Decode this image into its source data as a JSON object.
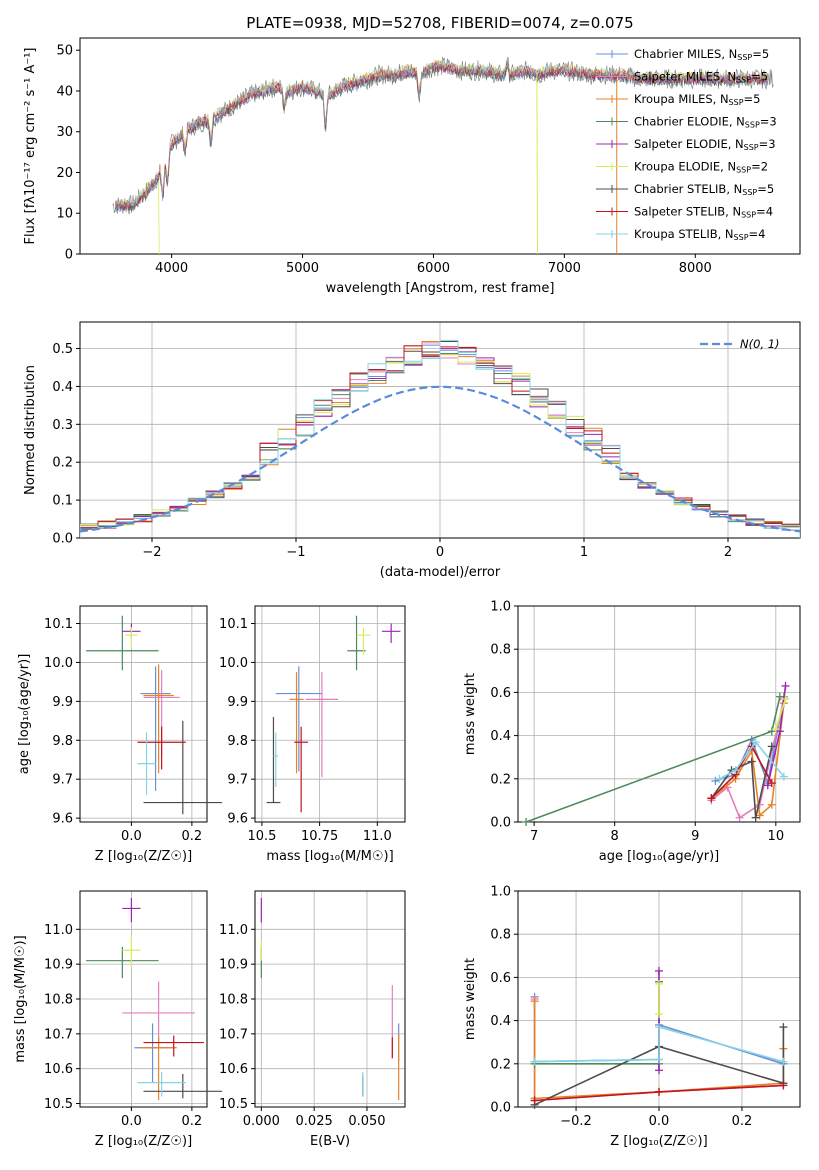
{
  "title": "PLATE=0938, MJD=52708, FIBERID=0074, z=0.075",
  "colors": {
    "Chabrier MILES": "#6a8fd8",
    "Salpeter MILES": "#e87dbd",
    "Kroupa MILES": "#e8822a",
    "Chabrier ELODIE": "#4f8a5a",
    "Salpeter ELODIE": "#9b27b0",
    "Kroupa ELODIE": "#d9ea5f",
    "Chabrier STELIB": "#4d4d4d",
    "Salpeter STELIB": "#c0161d",
    "Kroupa STELIB": "#86d3e6"
  },
  "legend": [
    {
      "name": "Chabrier MILES",
      "nssp": "5"
    },
    {
      "name": "Salpeter MILES",
      "nssp": "5"
    },
    {
      "name": "Kroupa MILES",
      "nssp": "5"
    },
    {
      "name": "Chabrier ELODIE",
      "nssp": "3"
    },
    {
      "name": "Salpeter ELODIE",
      "nssp": "3"
    },
    {
      "name": "Kroupa ELODIE",
      "nssp": "2"
    },
    {
      "name": "Chabrier STELIB",
      "nssp": "5"
    },
    {
      "name": "Salpeter STELIB",
      "nssp": "4"
    },
    {
      "name": "Kroupa STELIB",
      "nssp": "4"
    }
  ],
  "chart_data": [
    {
      "id": "spectrum",
      "type": "line",
      "xlabel": "wavelength [Angstrom, rest frame]",
      "ylabel": "Flux [fλ10⁻¹⁷ erg cm⁻² s⁻¹ A⁻¹]",
      "xlim": [
        3300,
        8800
      ],
      "ylim": [
        0,
        53
      ],
      "xticks": [
        4000,
        5000,
        6000,
        7000,
        8000
      ],
      "yticks": [
        0,
        10,
        20,
        30,
        40,
        50
      ],
      "continuum": [
        [
          3550,
          12
        ],
        [
          3700,
          12
        ],
        [
          3800,
          15
        ],
        [
          3900,
          19
        ],
        [
          4000,
          27
        ],
        [
          4100,
          30
        ],
        [
          4200,
          32
        ],
        [
          4300,
          33
        ],
        [
          4400,
          35
        ],
        [
          4500,
          37
        ],
        [
          4600,
          39
        ],
        [
          4700,
          40
        ],
        [
          4800,
          41
        ],
        [
          4900,
          40
        ],
        [
          5000,
          41
        ],
        [
          5100,
          40
        ],
        [
          5200,
          39
        ],
        [
          5300,
          41
        ],
        [
          5400,
          42
        ],
        [
          5500,
          43
        ],
        [
          5600,
          44
        ],
        [
          5700,
          44
        ],
        [
          5800,
          45
        ],
        [
          5900,
          44
        ],
        [
          6000,
          46
        ],
        [
          6100,
          46
        ],
        [
          6200,
          45
        ],
        [
          6300,
          45
        ],
        [
          6400,
          45
        ],
        [
          6500,
          44
        ],
        [
          6600,
          44
        ],
        [
          6700,
          45
        ],
        [
          6800,
          44
        ],
        [
          6900,
          45
        ],
        [
          7000,
          45
        ],
        [
          7200,
          44
        ],
        [
          7400,
          44
        ],
        [
          7600,
          43
        ],
        [
          7800,
          43
        ],
        [
          8000,
          43
        ],
        [
          8200,
          43
        ],
        [
          8400,
          43
        ],
        [
          8600,
          43
        ]
      ]
    },
    {
      "id": "residuals",
      "type": "histogram",
      "xlabel": "(data-model)/error",
      "ylabel": "Normed distribution",
      "xlim": [
        -2.5,
        2.5
      ],
      "ylim": [
        0,
        0.57
      ],
      "xticks": [
        -2,
        -1,
        0,
        1,
        2
      ],
      "yticks": [
        0.0,
        0.1,
        0.2,
        0.3,
        0.4,
        0.5
      ],
      "gaussian_label": "N(0, 1)"
    },
    {
      "id": "age_vs_Z",
      "type": "scatter",
      "xlabel": "Z [log₁₀(Z/Z☉)]",
      "ylabel": "age  [log₁₀(age/yr)]",
      "xlim": [
        -0.17,
        0.25
      ],
      "ylim": [
        9.59,
        10.145
      ],
      "xticks": [
        0.0,
        0.2
      ],
      "yticks": [
        9.6,
        9.7,
        9.8,
        9.9,
        10.0,
        10.1
      ],
      "points": [
        {
          "s": "Chabrier MILES",
          "x": 0.08,
          "y": 9.92,
          "xe": 0.05,
          "ye": [
            0.25,
            0.07
          ]
        },
        {
          "s": "Salpeter MILES",
          "x": 0.1,
          "y": 9.91,
          "xe": 0.06,
          "ye": [
            0.15,
            0.07
          ]
        },
        {
          "s": "Kroupa MILES",
          "x": 0.09,
          "y": 9.915,
          "xe": 0.05,
          "ye": [
            0.2,
            0.08
          ]
        },
        {
          "s": "Chabrier ELODIE",
          "x": -0.03,
          "y": 10.03,
          "xe": 0.12,
          "ye": [
            0.05,
            0.09
          ]
        },
        {
          "s": "Salpeter ELODIE",
          "x": 0.0,
          "y": 10.08,
          "xe": 0.03,
          "ye": [
            0.02,
            0.02
          ]
        },
        {
          "s": "Kroupa ELODIE",
          "x": 0.0,
          "y": 10.07,
          "xe": 0.02,
          "ye": [
            0.03,
            0.02
          ]
        },
        {
          "s": "Chabrier STELIB",
          "x": 0.17,
          "y": 9.64,
          "xe": 0.13,
          "ye": [
            0.03,
            0.21
          ]
        },
        {
          "s": "Salpeter STELIB",
          "x": 0.1,
          "y": 9.795,
          "xe": 0.08,
          "ye": [
            0.07,
            0.04
          ]
        },
        {
          "s": "Kroupa STELIB",
          "x": 0.05,
          "y": 9.74,
          "xe": 0.03,
          "ye": [
            0.08,
            0.08
          ]
        }
      ]
    },
    {
      "id": "age_vs_mass",
      "type": "scatter",
      "xlabel": "mass [log₁₀(M/M☉)]",
      "ylabel": "",
      "xlim": [
        10.47,
        11.12
      ],
      "ylim": [
        9.59,
        10.145
      ],
      "xticks": [
        10.5,
        10.75,
        11.0
      ],
      "yticks": [
        9.6,
        9.7,
        9.8,
        9.9,
        10.0,
        10.1
      ],
      "points": [
        {
          "s": "Chabrier MILES",
          "x": 10.66,
          "y": 9.92,
          "xe": 0.1,
          "ye": [
            0.2,
            0.07
          ]
        },
        {
          "s": "Salpeter MILES",
          "x": 10.76,
          "y": 9.905,
          "xe": 0.07,
          "ye": [
            0.2,
            0.07
          ]
        },
        {
          "s": "Kroupa MILES",
          "x": 10.65,
          "y": 9.905,
          "xe": 0.03,
          "ye": [
            0.19,
            0.07
          ]
        },
        {
          "s": "Chabrier ELODIE",
          "x": 10.91,
          "y": 10.03,
          "xe": 0.04,
          "ye": [
            0.05,
            0.09
          ]
        },
        {
          "s": "Salpeter ELODIE",
          "x": 11.06,
          "y": 10.08,
          "xe": 0.04,
          "ye": [
            0.03,
            0.02
          ]
        },
        {
          "s": "Kroupa ELODIE",
          "x": 10.94,
          "y": 10.07,
          "xe": 0.03,
          "ye": [
            0.05,
            0.02
          ]
        },
        {
          "s": "Chabrier STELIB",
          "x": 10.55,
          "y": 9.64,
          "xe": 0.03,
          "ye": [
            0.0,
            0.22
          ]
        },
        {
          "s": "Salpeter STELIB",
          "x": 10.67,
          "y": 9.795,
          "xe": 0.03,
          "ye": [
            0.18,
            0.04
          ]
        },
        {
          "s": "Kroupa STELIB",
          "x": 10.56,
          "y": 9.76,
          "xe": 0.01,
          "ye": [
            0.08,
            0.06
          ]
        }
      ]
    },
    {
      "id": "weight_vs_age",
      "type": "line",
      "xlabel": "age  [log₁₀(age/yr)]",
      "ylabel": "mass weight",
      "xlim": [
        6.8,
        10.3
      ],
      "ylim": [
        0,
        1.0
      ],
      "xticks": [
        7,
        8,
        9,
        10
      ],
      "yticks": [
        0.0,
        0.2,
        0.4,
        0.6,
        0.8,
        1.0
      ],
      "series": [
        {
          "s": "Chabrier MILES",
          "pts": [
            [
              9.25,
              0.19
            ],
            [
              9.5,
              0.22
            ],
            [
              9.7,
              0.38
            ],
            [
              9.9,
              0.18
            ],
            [
              10.1,
              0.58
            ]
          ]
        },
        {
          "s": "Salpeter MILES",
          "pts": [
            [
              9.2,
              0.1
            ],
            [
              9.4,
              0.16
            ],
            [
              9.55,
              0.02
            ],
            [
              9.8,
              0.08
            ],
            [
              10.1,
              0.57
            ]
          ]
        },
        {
          "s": "Kroupa MILES",
          "pts": [
            [
              9.2,
              0.11
            ],
            [
              9.5,
              0.2
            ],
            [
              9.7,
              0.33
            ],
            [
              9.8,
              0.03
            ],
            [
              9.95,
              0.08
            ],
            [
              10.1,
              0.55
            ]
          ]
        },
        {
          "s": "Chabrier ELODIE",
          "pts": [
            [
              6.9,
              0.0
            ],
            [
              9.95,
              0.42
            ],
            [
              10.05,
              0.58
            ]
          ]
        },
        {
          "s": "Salpeter ELODIE",
          "pts": [
            [
              9.9,
              0.17
            ],
            [
              10.05,
              0.42
            ],
            [
              10.12,
              0.63
            ]
          ]
        },
        {
          "s": "Kroupa ELODIE",
          "pts": [
            [
              10.0,
              0.43
            ],
            [
              10.12,
              0.57
            ]
          ]
        },
        {
          "s": "Chabrier STELIB",
          "pts": [
            [
              9.2,
              0.11
            ],
            [
              9.45,
              0.24
            ],
            [
              9.7,
              0.28
            ],
            [
              9.75,
              0.02
            ],
            [
              9.95,
              0.35
            ]
          ]
        },
        {
          "s": "Salpeter STELIB",
          "pts": [
            [
              9.2,
              0.11
            ],
            [
              9.5,
              0.22
            ],
            [
              9.7,
              0.35
            ],
            [
              9.95,
              0.18
            ]
          ]
        },
        {
          "s": "Kroupa STELIB",
          "pts": [
            [
              9.3,
              0.2
            ],
            [
              9.5,
              0.24
            ],
            [
              9.75,
              0.37
            ],
            [
              10.1,
              0.21
            ]
          ]
        }
      ]
    },
    {
      "id": "mass_vs_Z",
      "type": "scatter",
      "xlabel": "Z [log₁₀(Z/Z☉)]",
      "ylabel": "mass [log₁₀(M/M☉)]",
      "xlim": [
        -0.17,
        0.25
      ],
      "ylim": [
        10.49,
        11.11
      ],
      "xticks": [
        0.0,
        0.2
      ],
      "yticks": [
        10.5,
        10.6,
        10.7,
        10.8,
        10.9,
        11.0
      ],
      "points": [
        {
          "s": "Chabrier MILES",
          "x": 0.07,
          "y": 10.66,
          "xe": 0.06,
          "ye": [
            0.1,
            0.07
          ]
        },
        {
          "s": "Salpeter MILES",
          "x": 0.09,
          "y": 10.76,
          "xe": 0.12,
          "ye": [
            0.1,
            0.09
          ]
        },
        {
          "s": "Kroupa MILES",
          "x": 0.09,
          "y": 10.66,
          "xe": 0.06,
          "ye": [
            0.15,
            0.03
          ]
        },
        {
          "s": "Chabrier ELODIE",
          "x": -0.03,
          "y": 10.91,
          "xe": 0.12,
          "ye": [
            0.05,
            0.04
          ]
        },
        {
          "s": "Salpeter ELODIE",
          "x": 0.0,
          "y": 11.06,
          "xe": 0.03,
          "ye": [
            0.04,
            0.03
          ]
        },
        {
          "s": "Kroupa ELODIE",
          "x": 0.0,
          "y": 10.94,
          "xe": 0.03,
          "ye": [
            0.05,
            0.04
          ]
        },
        {
          "s": "Chabrier STELIB",
          "x": 0.17,
          "y": 10.535,
          "xe": 0.13,
          "ye": [
            0.02,
            0.05
          ]
        },
        {
          "s": "Salpeter STELIB",
          "x": 0.14,
          "y": 10.675,
          "xe": 0.1,
          "ye": [
            0.04,
            0.02
          ]
        },
        {
          "s": "Kroupa STELIB",
          "x": 0.1,
          "y": 10.56,
          "xe": 0.08,
          "ye": [
            0.04,
            0.03
          ]
        }
      ]
    },
    {
      "id": "mass_vs_ebv",
      "type": "scatter",
      "xlabel": "E(B-V)",
      "ylabel": "",
      "xlim": [
        -0.003,
        0.068
      ],
      "ylim": [
        10.49,
        11.11
      ],
      "xticks": [
        0.0,
        0.025,
        0.05
      ],
      "yticks": [
        10.5,
        10.6,
        10.7,
        10.8,
        10.9,
        11.0
      ],
      "points": [
        {
          "s": "Chabrier MILES",
          "x": 0.065,
          "y": 10.66,
          "xe": 0,
          "ye": [
            0.04,
            0.07
          ]
        },
        {
          "s": "Salpeter MILES",
          "x": 0.062,
          "y": 10.75,
          "xe": 0,
          "ye": [
            0.12,
            0.09
          ]
        },
        {
          "s": "Kroupa MILES",
          "x": 0.065,
          "y": 10.63,
          "xe": 0,
          "ye": [
            0.12,
            0.07
          ]
        },
        {
          "s": "Chabrier ELODIE",
          "x": 0.0,
          "y": 10.91,
          "xe": 0,
          "ye": [
            0.05,
            0.04
          ]
        },
        {
          "s": "Salpeter ELODIE",
          "x": 0.0,
          "y": 11.06,
          "xe": 0,
          "ye": [
            0.04,
            0.03
          ]
        },
        {
          "s": "Kroupa ELODIE",
          "x": 0.0,
          "y": 10.94,
          "xe": 0,
          "ye": [
            0.03,
            0.03
          ]
        },
        {
          "s": "Chabrier STELIB",
          "x": 0.048,
          "y": 10.55,
          "xe": 0,
          "ye": [
            0.03,
            0.03
          ]
        },
        {
          "s": "Salpeter STELIB",
          "x": 0.062,
          "y": 10.67,
          "xe": 0,
          "ye": [
            0.04,
            0.02
          ]
        },
        {
          "s": "Kroupa STELIB",
          "x": 0.048,
          "y": 10.56,
          "xe": 0,
          "ye": [
            0.04,
            0.03
          ]
        }
      ]
    },
    {
      "id": "weight_vs_Z",
      "type": "line",
      "xlabel": "Z [log₁₀(Z/Z☉)]",
      "ylabel": "mass weight",
      "xlim": [
        -0.34,
        0.34
      ],
      "ylim": [
        0,
        1.0
      ],
      "xticks": [
        -0.2,
        0.0,
        0.2
      ],
      "yticks": [
        0.0,
        0.2,
        0.4,
        0.6,
        0.8,
        1.0
      ],
      "series": [
        {
          "s": "Chabrier MILES",
          "pts": [
            [
              -0.3,
              0.51
            ],
            [
              -0.3,
              0.21
            ],
            [
              0.0,
              0.22
            ],
            [
              0.0,
              0.38
            ],
            [
              0.3,
              0.2
            ]
          ]
        },
        {
          "s": "Salpeter MILES",
          "pts": [
            [
              -0.3,
              0.5
            ],
            [
              -0.3,
              0.03
            ],
            [
              0.0,
              0.07
            ],
            [
              0.3,
              0.1
            ]
          ]
        },
        {
          "s": "Kroupa MILES",
          "pts": [
            [
              -0.3,
              0.49
            ],
            [
              -0.3,
              0.04
            ],
            [
              0.0,
              0.07
            ],
            [
              0.3,
              0.11
            ],
            [
              0.3,
              0.27
            ]
          ]
        },
        {
          "s": "Chabrier ELODIE",
          "pts": [
            [
              -0.3,
              0.2
            ],
            [
              0.0,
              0.2
            ],
            [
              0.0,
              0.58
            ]
          ]
        },
        {
          "s": "Salpeter ELODIE",
          "pts": [
            [
              0.0,
              0.17
            ],
            [
              0.0,
              0.63
            ]
          ]
        },
        {
          "s": "Kroupa ELODIE",
          "pts": [
            [
              0.0,
              0.43
            ],
            [
              0.0,
              0.57
            ]
          ]
        },
        {
          "s": "Chabrier STELIB",
          "pts": [
            [
              -0.3,
              0.01
            ],
            [
              0.0,
              0.28
            ],
            [
              0.3,
              0.11
            ],
            [
              0.3,
              0.37
            ]
          ]
        },
        {
          "s": "Salpeter STELIB",
          "pts": [
            [
              -0.3,
              0.03
            ],
            [
              0.0,
              0.07
            ],
            [
              0.3,
              0.1
            ]
          ]
        },
        {
          "s": "Kroupa STELIB",
          "pts": [
            [
              -0.3,
              0.21
            ],
            [
              0.0,
              0.22
            ],
            [
              0.0,
              0.37
            ],
            [
              0.3,
              0.21
            ]
          ]
        }
      ]
    }
  ]
}
